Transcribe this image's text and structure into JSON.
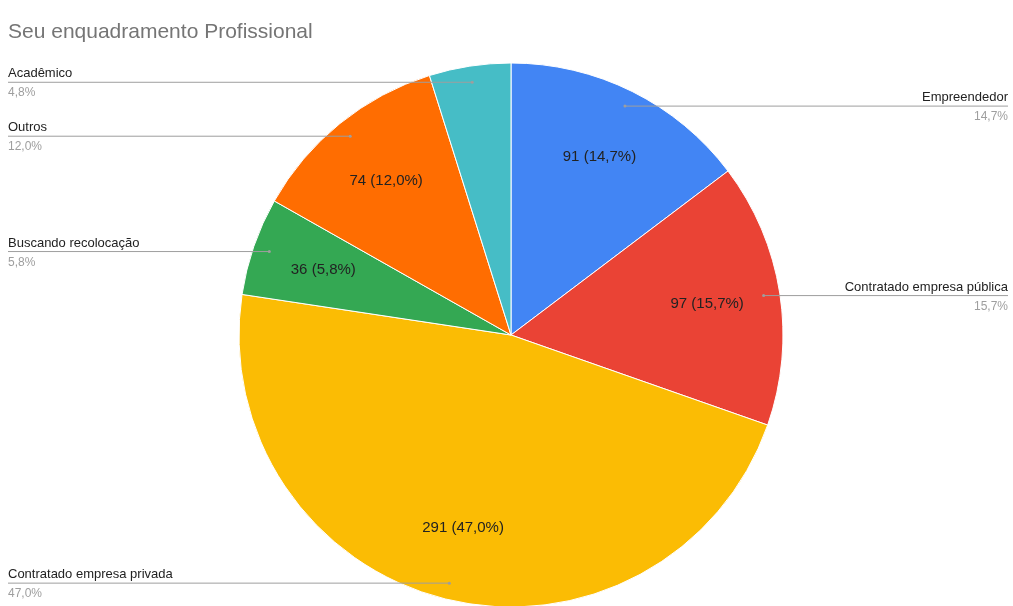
{
  "chart_data": {
    "type": "pie",
    "title": "Seu enquadramento Profissional",
    "categories": [
      "Empreendedor",
      "Contratado empresa pública",
      "Contratado empresa privada",
      "Buscando recolocação",
      "Outros",
      "Acadêmico"
    ],
    "values": [
      91,
      97,
      291,
      36,
      74,
      30
    ],
    "colors": [
      "#4285f4",
      "#ea4335",
      "#fbbc04",
      "#34a853",
      "#ff6d01",
      "#46bdc6"
    ],
    "value_labels": [
      "91 (14,7%)",
      "97 (15,7%)",
      "291 (47,0%)",
      "36 (5,8%)",
      "74 (12,0%)",
      null
    ],
    "annotations": [
      "14,7%",
      "15,7%",
      "47,0%",
      "5,8%",
      "12,0%",
      "4,8%"
    ],
    "legend": false
  }
}
